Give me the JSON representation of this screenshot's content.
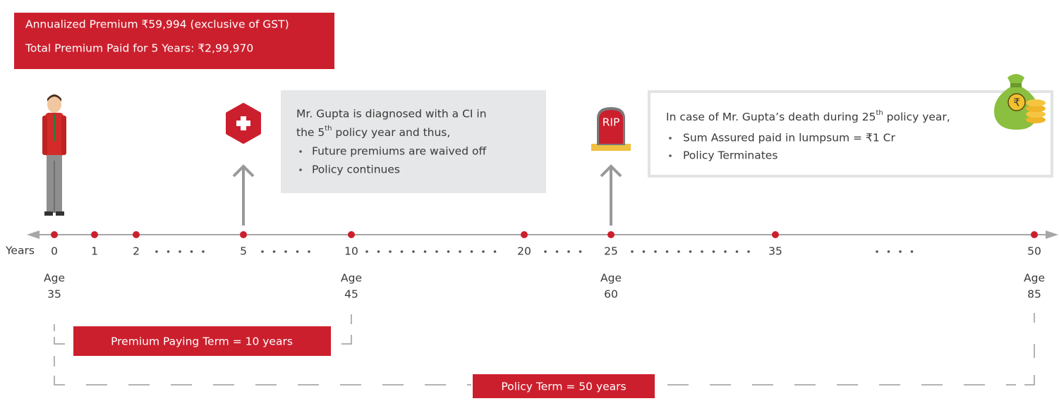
{
  "header": {
    "lines": [
      "Annualized Premium ₹59,994 (exclusive of GST)",
      "Total Premium Paid for 5 Years: ₹2,99,970"
    ]
  },
  "event_ci": {
    "text_parts": [
      "Mr. Gupta is diagnosed with a CI in",
      "the 5",
      "th",
      " policy year and thus,"
    ],
    "bullets": [
      "Future premiums are waived off",
      "Policy continues"
    ]
  },
  "event_death": {
    "icon_label": "RIP",
    "text_parts": [
      "In case of Mr. Gupta’s death during 25",
      "th",
      " policy year,"
    ],
    "bullets": [
      "Sum Assured paid in lumpsum = ₹1 Cr",
      "Policy Terminates"
    ]
  },
  "timeline": {
    "axis_label": "Years",
    "years": [
      "0",
      "1",
      "2",
      "5",
      "10",
      "20",
      "25",
      "35",
      "50"
    ],
    "ages": [
      {
        "label": "Age",
        "age": "35"
      },
      {
        "label": "Age",
        "age": "45"
      },
      {
        "label": "Age",
        "age": "60"
      },
      {
        "label": "Age",
        "age": "85"
      }
    ]
  },
  "terms": {
    "premium_paying": "Premium Paying Term = 10 years",
    "policy": "Policy Term = 50 years"
  }
}
